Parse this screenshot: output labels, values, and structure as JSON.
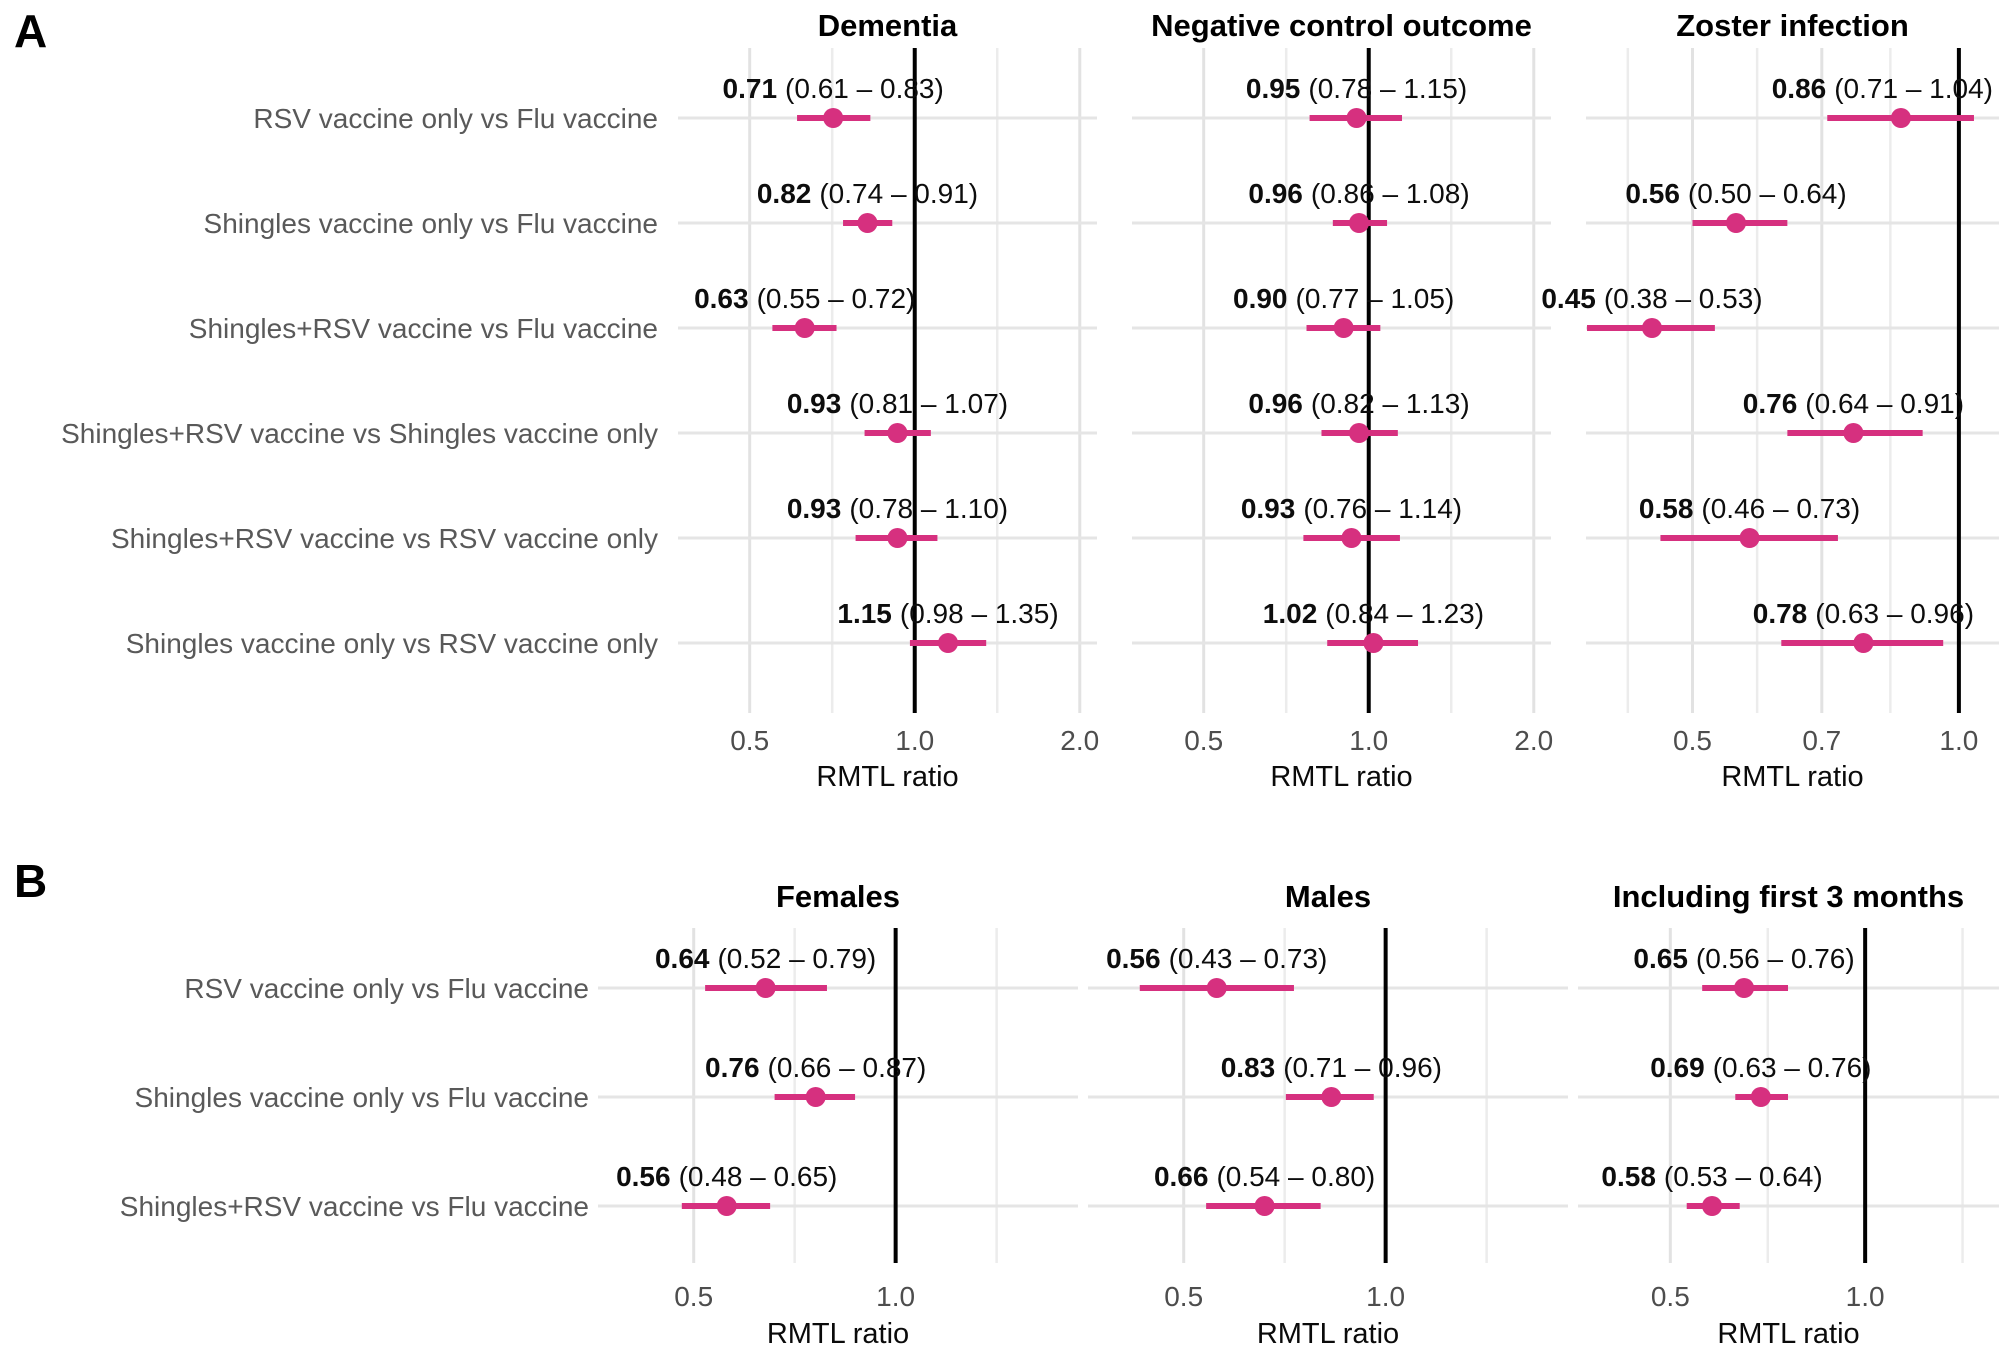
{
  "figure": {
    "background": "#FFFFFF",
    "point_color": "#D6307F",
    "reference_line_color": "#000000",
    "major_grid_color": "#E2E2E2",
    "minor_grid_color": "#ECECEC",
    "row_grid_color": "#E5E5E5",
    "row_label_color": "#595959",
    "axis_label": "RMTL ratio"
  },
  "chart_data": [
    {
      "type": "forest",
      "panel_label": "A",
      "xlabel": "RMTL ratio",
      "xscale": "log",
      "legend": "none",
      "grid": "on",
      "rows": [
        "RSV vaccine only vs Flu vaccine",
        "Shingles vaccine only vs Flu vaccine",
        "Shingles+RSV vaccine vs Flu vaccine",
        "Shingles+RSV vaccine vs Shingles vaccine only",
        "Shingles+RSV vaccine vs RSV vaccine only",
        "Shingles vaccine only vs RSV vaccine only"
      ],
      "subplots": [
        {
          "title": "Dementia",
          "xlim": [
            0.37,
            2.15
          ],
          "reference_line": 1.0,
          "xticks": [
            {
              "value": 0.5,
              "label": "0.5"
            },
            {
              "value": 1.0,
              "label": "1.0"
            },
            {
              "value": 2.0,
              "label": "2.0"
            }
          ],
          "estimates": [
            {
              "est": 0.71,
              "lo": 0.61,
              "hi": 0.83,
              "est_label": "0.71",
              "ci_label": "(0.61 – 0.83)"
            },
            {
              "est": 0.82,
              "lo": 0.74,
              "hi": 0.91,
              "est_label": "0.82",
              "ci_label": "(0.74 – 0.91)"
            },
            {
              "est": 0.63,
              "lo": 0.55,
              "hi": 0.72,
              "est_label": "0.63",
              "ci_label": "(0.55 – 0.72)"
            },
            {
              "est": 0.93,
              "lo": 0.81,
              "hi": 1.07,
              "est_label": "0.93",
              "ci_label": "(0.81 – 1.07)"
            },
            {
              "est": 0.93,
              "lo": 0.78,
              "hi": 1.1,
              "est_label": "0.93",
              "ci_label": "(0.78 – 1.10)"
            },
            {
              "est": 1.15,
              "lo": 0.98,
              "hi": 1.35,
              "est_label": "1.15",
              "ci_label": "(0.98 – 1.35)"
            }
          ]
        },
        {
          "title": "Negative control outcome",
          "xlim": [
            0.37,
            2.15
          ],
          "reference_line": 1.0,
          "xticks": [
            {
              "value": 0.5,
              "label": "0.5"
            },
            {
              "value": 1.0,
              "label": "1.0"
            },
            {
              "value": 2.0,
              "label": "2.0"
            }
          ],
          "estimates": [
            {
              "est": 0.95,
              "lo": 0.78,
              "hi": 1.15,
              "est_label": "0.95",
              "ci_label": "(0.78 – 1.15)"
            },
            {
              "est": 0.96,
              "lo": 0.86,
              "hi": 1.08,
              "est_label": "0.96",
              "ci_label": "(0.86 – 1.08)"
            },
            {
              "est": 0.9,
              "lo": 0.77,
              "hi": 1.05,
              "est_label": "0.90",
              "ci_label": "(0.77 – 1.05)"
            },
            {
              "est": 0.96,
              "lo": 0.82,
              "hi": 1.13,
              "est_label": "0.96",
              "ci_label": "(0.82 – 1.13)"
            },
            {
              "est": 0.93,
              "lo": 0.76,
              "hi": 1.14,
              "est_label": "0.93",
              "ci_label": "(0.76 – 1.14)"
            },
            {
              "est": 1.02,
              "lo": 0.84,
              "hi": 1.23,
              "est_label": "1.02",
              "ci_label": "(0.84 – 1.23)"
            }
          ]
        },
        {
          "title": "Zoster infection",
          "xlim": [
            0.379,
            1.11
          ],
          "reference_line": 1.0,
          "xticks": [
            {
              "value": 0.5,
              "label": "0.5"
            },
            {
              "value": 0.7,
              "label": "0.7"
            },
            {
              "value": 1.0,
              "label": "1.0"
            }
          ],
          "estimates": [
            {
              "est": 0.86,
              "lo": 0.71,
              "hi": 1.04,
              "est_label": "0.86",
              "ci_label": "(0.71 – 1.04)"
            },
            {
              "est": 0.56,
              "lo": 0.5,
              "hi": 0.64,
              "est_label": "0.56",
              "ci_label": "(0.50 – 0.64)"
            },
            {
              "est": 0.45,
              "lo": 0.38,
              "hi": 0.53,
              "est_label": "0.45",
              "ci_label": "(0.38 – 0.53)"
            },
            {
              "est": 0.76,
              "lo": 0.64,
              "hi": 0.91,
              "est_label": "0.76",
              "ci_label": "(0.64 – 0.91)"
            },
            {
              "est": 0.58,
              "lo": 0.46,
              "hi": 0.73,
              "est_label": "0.58",
              "ci_label": "(0.46 – 0.73)"
            },
            {
              "est": 0.78,
              "lo": 0.63,
              "hi": 0.96,
              "est_label": "0.78",
              "ci_label": "(0.63 – 0.96)"
            }
          ]
        }
      ]
    },
    {
      "type": "forest",
      "panel_label": "B",
      "xlabel": "RMTL ratio",
      "xscale": "log",
      "legend": "none",
      "grid": "on",
      "rows": [
        "RSV vaccine only vs Flu vaccine",
        "Shingles vaccine only vs Flu vaccine",
        "Shingles+RSV vaccine vs Flu vaccine"
      ],
      "subplots": [
        {
          "title": "Females",
          "xlim": [
            0.36,
            1.87
          ],
          "reference_line": 1.0,
          "xticks": [
            {
              "value": 0.5,
              "label": "0.5"
            },
            {
              "value": 1.0,
              "label": "1.0"
            }
          ],
          "estimates": [
            {
              "est": 0.64,
              "lo": 0.52,
              "hi": 0.79,
              "est_label": "0.64",
              "ci_label": "(0.52 – 0.79)"
            },
            {
              "est": 0.76,
              "lo": 0.66,
              "hi": 0.87,
              "est_label": "0.76",
              "ci_label": "(0.66 – 0.87)"
            },
            {
              "est": 0.56,
              "lo": 0.48,
              "hi": 0.65,
              "est_label": "0.56",
              "ci_label": "(0.48 – 0.65)"
            }
          ]
        },
        {
          "title": "Males",
          "xlim": [
            0.36,
            1.87
          ],
          "reference_line": 1.0,
          "xticks": [
            {
              "value": 0.5,
              "label": "0.5"
            },
            {
              "value": 1.0,
              "label": "1.0"
            }
          ],
          "estimates": [
            {
              "est": 0.56,
              "lo": 0.43,
              "hi": 0.73,
              "est_label": "0.56",
              "ci_label": "(0.43 – 0.73)"
            },
            {
              "est": 0.83,
              "lo": 0.71,
              "hi": 0.96,
              "est_label": "0.83",
              "ci_label": "(0.71 – 0.96)"
            },
            {
              "est": 0.66,
              "lo": 0.54,
              "hi": 0.8,
              "est_label": "0.66",
              "ci_label": "(0.54 – 0.80)"
            }
          ]
        },
        {
          "title": "Including first 3 months",
          "xlim": [
            0.36,
            1.61
          ],
          "reference_line": 1.0,
          "xticks": [
            {
              "value": 0.5,
              "label": "0.5"
            },
            {
              "value": 1.0,
              "label": "1.0"
            }
          ],
          "estimates": [
            {
              "est": 0.65,
              "lo": 0.56,
              "hi": 0.76,
              "est_label": "0.65",
              "ci_label": "(0.56 – 0.76)"
            },
            {
              "est": 0.69,
              "lo": 0.63,
              "hi": 0.76,
              "est_label": "0.69",
              "ci_label": "(0.63 – 0.76)"
            },
            {
              "est": 0.58,
              "lo": 0.53,
              "hi": 0.64,
              "est_label": "0.58",
              "ci_label": "(0.53 – 0.64)"
            }
          ]
        }
      ]
    }
  ]
}
